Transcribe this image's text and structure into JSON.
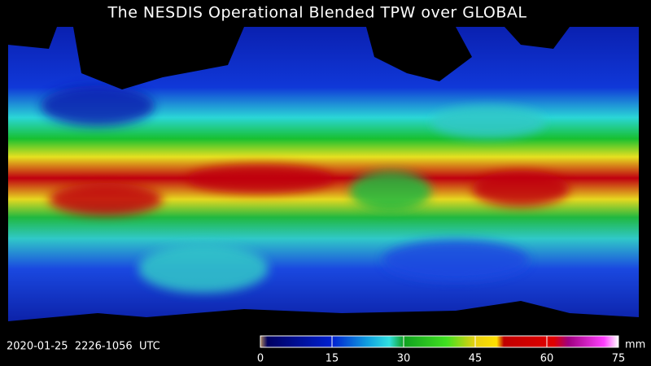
{
  "header": {
    "title": "The NESDIS Operational Blended TPW over GLOBAL"
  },
  "footer": {
    "timestamp": "2020-01-25  2226-1056  UTC"
  },
  "colorbar": {
    "ticks": [
      0,
      15,
      30,
      45,
      60,
      75
    ],
    "unit": "mm"
  }
}
